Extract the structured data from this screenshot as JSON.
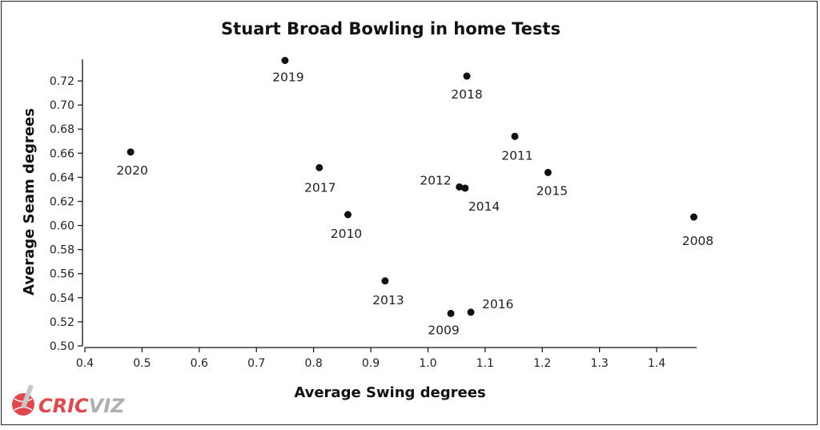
{
  "chart_data": {
    "type": "scatter",
    "title": "Stuart Broad Bowling in home Tests",
    "xlabel": "Average Swing degrees",
    "ylabel": "Average Seam degrees",
    "xlim": [
      0.4,
      1.47
    ],
    "ylim": [
      0.5,
      0.738
    ],
    "xticks": [
      "0.4",
      "0.5",
      "0.6",
      "0.7",
      "0.8",
      "0.9",
      "1.0",
      "1.1",
      "1.2",
      "1.3",
      "1.4"
    ],
    "yticks": [
      "0.50",
      "0.52",
      "0.54",
      "0.56",
      "0.58",
      "0.60",
      "0.62",
      "0.64",
      "0.66",
      "0.68",
      "0.70",
      "0.72"
    ],
    "grid": false,
    "series": [
      {
        "points": [
          {
            "label": "2020",
            "x": 0.48,
            "y": 0.661
          },
          {
            "label": "2019",
            "x": 0.75,
            "y": 0.737
          },
          {
            "label": "2017",
            "x": 0.81,
            "y": 0.648
          },
          {
            "label": "2010",
            "x": 0.86,
            "y": 0.609
          },
          {
            "label": "2013",
            "x": 0.925,
            "y": 0.554
          },
          {
            "label": "2009",
            "x": 1.04,
            "y": 0.527
          },
          {
            "label": "2016",
            "x": 1.075,
            "y": 0.528
          },
          {
            "label": "2012",
            "x": 1.055,
            "y": 0.632
          },
          {
            "label": "2014",
            "x": 1.065,
            "y": 0.631
          },
          {
            "label": "2018",
            "x": 1.068,
            "y": 0.724
          },
          {
            "label": "2011",
            "x": 1.152,
            "y": 0.674
          },
          {
            "label": "2015",
            "x": 1.21,
            "y": 0.644
          },
          {
            "label": "2008",
            "x": 1.465,
            "y": 0.607
          }
        ]
      }
    ]
  },
  "logo": {
    "text_cric": "CRIC",
    "text_viz": "VIZ",
    "color_cric": "#e0484e",
    "color_viz": "#b0b0b0"
  }
}
